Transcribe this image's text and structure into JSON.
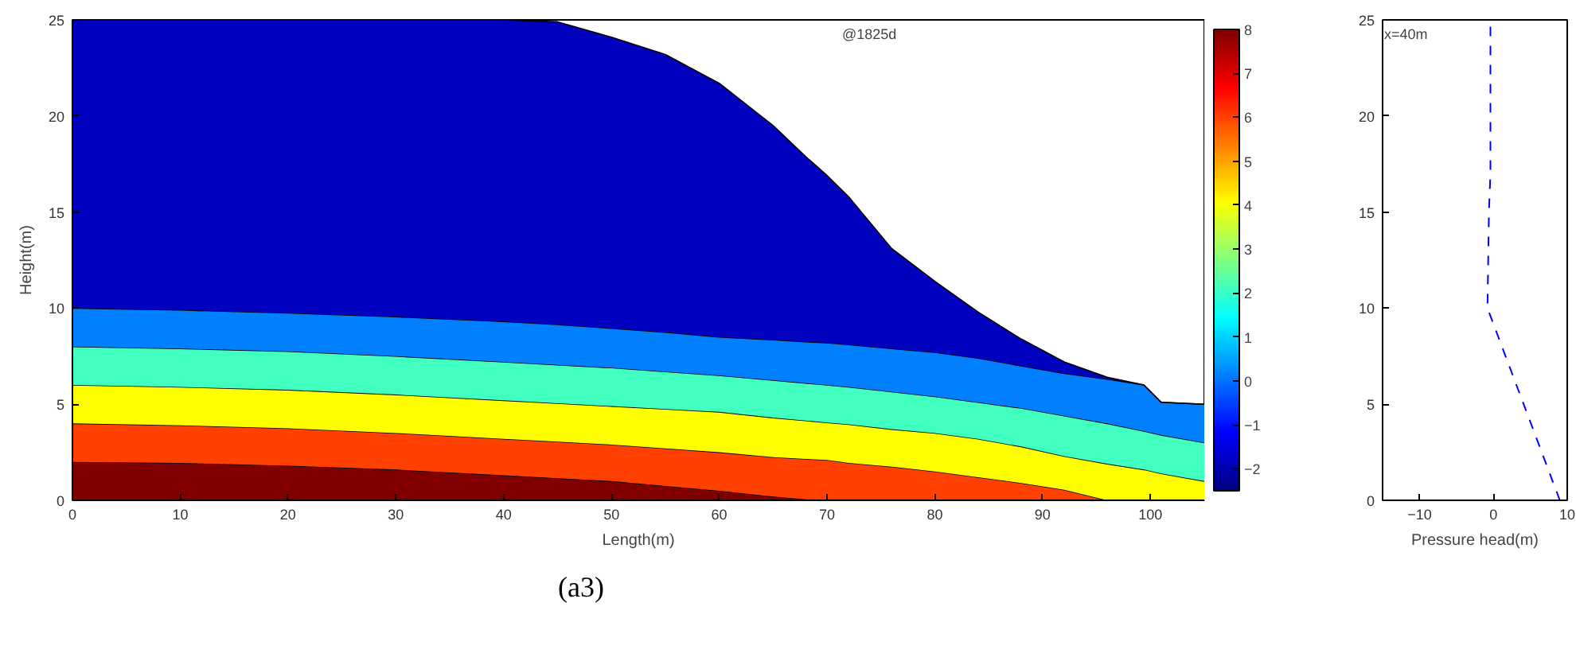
{
  "chart_data": [
    {
      "type": "area",
      "stacked": true,
      "xlabel": "Length(m)",
      "ylabel": "Height(m)",
      "annotations": [
        "@1825d",
        "(a3)"
      ],
      "x": [
        0,
        10,
        20,
        30,
        40,
        45,
        50,
        55,
        60,
        65,
        68,
        70,
        72,
        76,
        80,
        84,
        88,
        92,
        96,
        99.4,
        101,
        105
      ],
      "series": [
        {
          "color": "#800000",
          "values": [
            2,
            1.95,
            1.8,
            1.6,
            1.3,
            1.15,
            1.0,
            0.75,
            0.5,
            0.2,
            0.05,
            0,
            0,
            0,
            0,
            0,
            0,
            0,
            0,
            0,
            0,
            0
          ]
        },
        {
          "color": "#ff4000",
          "values": [
            2,
            1.95,
            1.95,
            1.9,
            1.9,
            1.9,
            1.9,
            1.95,
            2.0,
            2.05,
            2.1,
            2.1,
            1.95,
            1.75,
            1.5,
            1.2,
            0.9,
            0.55,
            0,
            0,
            0,
            0
          ]
        },
        {
          "color": "#ffff00",
          "values": [
            2,
            2,
            2,
            2,
            2,
            2,
            2,
            2.05,
            2.1,
            2.05,
            2.0,
            1.95,
            2.0,
            1.95,
            2.0,
            2.0,
            1.9,
            1.75,
            1.9,
            1.6,
            1.4,
            1.0
          ]
        },
        {
          "color": "#40ffbf",
          "values": [
            2,
            2,
            2,
            2,
            2,
            2,
            2,
            1.95,
            1.9,
            1.95,
            1.95,
            1.95,
            1.95,
            1.95,
            1.9,
            1.9,
            2.0,
            2.1,
            2.1,
            2.0,
            2.0,
            2.0
          ]
        },
        {
          "color": "#0080ff",
          "values": [
            2,
            2,
            2,
            2.05,
            2.1,
            2.1,
            2.05,
            2.05,
            2.0,
            2.1,
            2.15,
            2.2,
            2.2,
            2.25,
            2.3,
            2.3,
            2.2,
            2.2,
            2.3,
            2.4,
            1.7,
            2.0
          ]
        },
        {
          "color": "#0000bf",
          "values": [
            15,
            15.1,
            15.25,
            15.45,
            15.7,
            15.75,
            15.15,
            14.45,
            13.2,
            11.15,
            9.65,
            8.7,
            7.7,
            5.2,
            3.7,
            2.4,
            1.4,
            0.6,
            0.1,
            0,
            0,
            0
          ]
        }
      ],
      "xlim": [
        0,
        105
      ],
      "xticks": [
        0,
        10,
        20,
        30,
        40,
        50,
        60,
        70,
        80,
        90,
        100
      ],
      "ylim": [
        0,
        25
      ],
      "yticks": [
        0,
        5,
        10,
        15,
        20,
        25
      ],
      "clim": [
        -2.5,
        8
      ],
      "cticks": [
        -2,
        -1,
        0,
        1,
        2,
        3,
        4,
        5,
        6,
        7,
        8
      ]
    },
    {
      "type": "line",
      "xlabel": "Pressure head(m)",
      "annotations": [
        "x=40m"
      ],
      "line_style": "dashed",
      "marker": "none",
      "series": [
        {
          "color": "#0000ff",
          "x": [
            9.0,
            -0.8,
            -0.6,
            -0.4,
            -0.4
          ],
          "values": [
            0,
            10,
            15,
            17,
            25
          ]
        }
      ],
      "xlim": [
        -15,
        10
      ],
      "xticks": [
        -10,
        0,
        10
      ],
      "ylim": [
        0,
        25
      ],
      "yticks": [
        0,
        5,
        10,
        15,
        20,
        25
      ]
    }
  ]
}
